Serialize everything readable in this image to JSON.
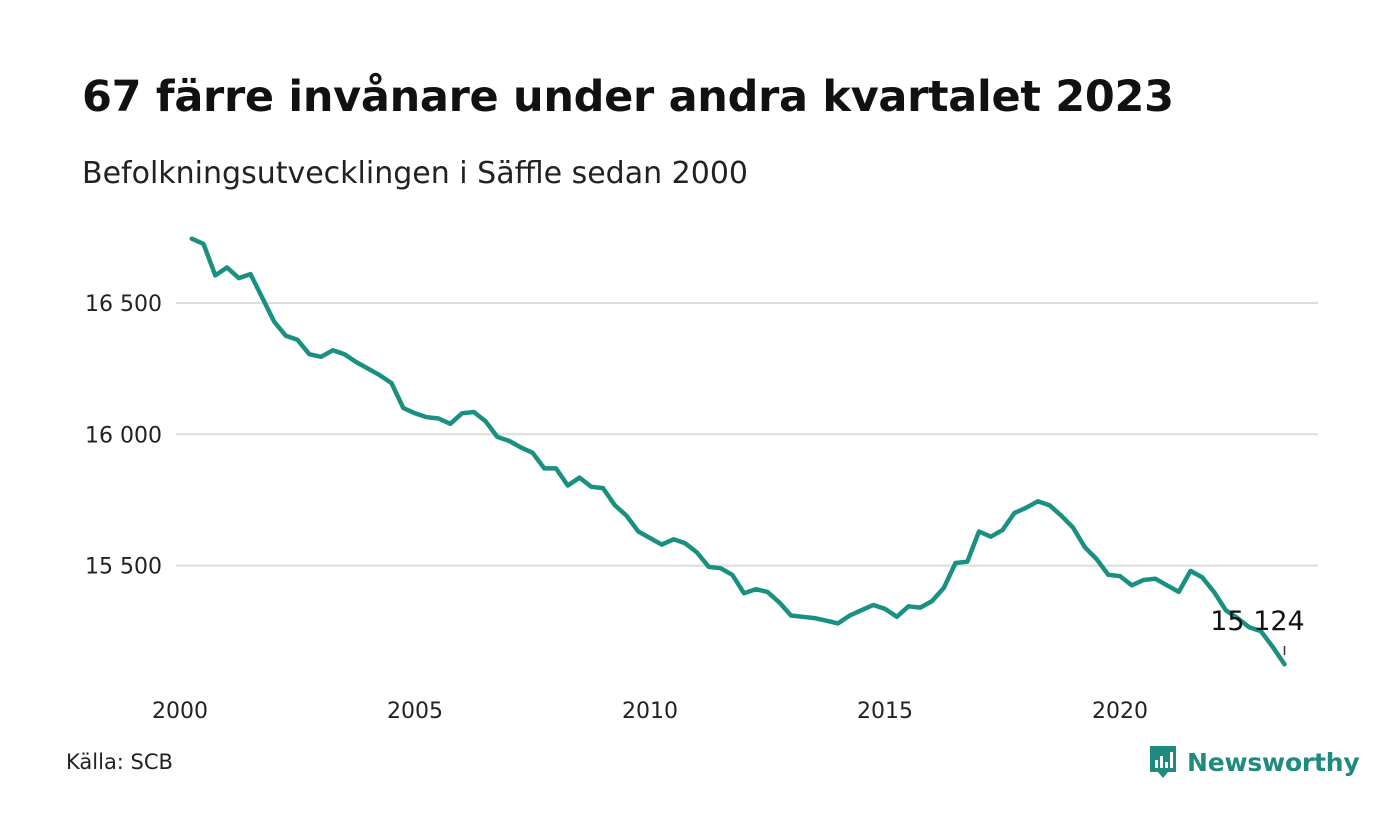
{
  "title": "67 färre invånare under andra kvartalet 2023",
  "subtitle": "Befolkningsutvecklingen i Säffle sedan 2000",
  "source": "Källa: SCB",
  "brand": {
    "name": "Newsworthy",
    "icon": "newsworthy-logo-icon",
    "color": "#1f8a7e"
  },
  "chart_data": {
    "type": "line",
    "title": "67 färre invånare under andra kvartalet 2023",
    "subtitle": "Befolkningsutvecklingen i Säffle sedan 2000",
    "xlabel": "",
    "ylabel": "",
    "xlim": [
      2000,
      2024
    ],
    "ylim": [
      15100,
      16780
    ],
    "x_ticks": [
      2000,
      2005,
      2010,
      2015,
      2020
    ],
    "x_tick_labels": [
      "2000",
      "2005",
      "2010",
      "2015",
      "2020"
    ],
    "y_ticks": [
      15500,
      16000,
      16500
    ],
    "y_tick_labels": [
      "15 500",
      "16 000",
      "16 500"
    ],
    "grid": "horizontal",
    "line_color": "#1a9080",
    "series": [
      {
        "x": [
          2000.25,
          2000.5,
          2000.75,
          2001,
          2001.25,
          2001.5,
          2001.75,
          2002,
          2002.25,
          2002.5,
          2002.75,
          2003,
          2003.25,
          2003.5,
          2003.75,
          2004,
          2004.25,
          2004.5,
          2004.75,
          2005,
          2005.25,
          2005.5,
          2005.75,
          2006,
          2006.25,
          2006.5,
          2006.75,
          2007,
          2007.25,
          2007.5,
          2007.75,
          2008,
          2008.25,
          2008.5,
          2008.75,
          2009,
          2009.25,
          2009.5,
          2009.75,
          2010,
          2010.25,
          2010.5,
          2010.75,
          2011,
          2011.25,
          2011.5,
          2011.75,
          2012,
          2012.25,
          2012.5,
          2012.75,
          2013,
          2013.25,
          2013.5,
          2013.75,
          2014,
          2014.25,
          2014.5,
          2014.75,
          2015,
          2015.25,
          2015.5,
          2015.75,
          2016,
          2016.25,
          2016.5,
          2016.75,
          2017,
          2017.25,
          2017.5,
          2017.75,
          2018,
          2018.25,
          2018.5,
          2018.75,
          2019,
          2019.25,
          2019.5,
          2019.75,
          2020,
          2020.25,
          2020.5,
          2020.75,
          2021,
          2021.25,
          2021.5,
          2021.75,
          2022,
          2022.25,
          2022.5,
          2022.75,
          2023,
          2023.25,
          2023.5
        ],
        "values": [
          16745,
          16725,
          16605,
          16635,
          16595,
          16610,
          16520,
          16430,
          16375,
          16360,
          16305,
          16295,
          16320,
          16305,
          16275,
          16250,
          16225,
          16195,
          16100,
          16080,
          16065,
          16060,
          16040,
          16080,
          16085,
          16050,
          15990,
          15975,
          15950,
          15930,
          15870,
          15870,
          15805,
          15835,
          15800,
          15795,
          15730,
          15690,
          15630,
          15605,
          15580,
          15600,
          15585,
          15550,
          15495,
          15490,
          15465,
          15395,
          15410,
          15400,
          15360,
          15310,
          15305,
          15300,
          15290,
          15280,
          15310,
          15330,
          15350,
          15335,
          15305,
          15345,
          15340,
          15365,
          15415,
          15510,
          15515,
          15630,
          15610,
          15635,
          15700,
          15720,
          15745,
          15730,
          15690,
          15645,
          15570,
          15525,
          15465,
          15460,
          15425,
          15445,
          15450,
          15425,
          15400,
          15480,
          15455,
          15400,
          15330,
          15300,
          15265,
          15250,
          15190,
          15124
        ],
        "end_label": "15 124"
      }
    ]
  }
}
